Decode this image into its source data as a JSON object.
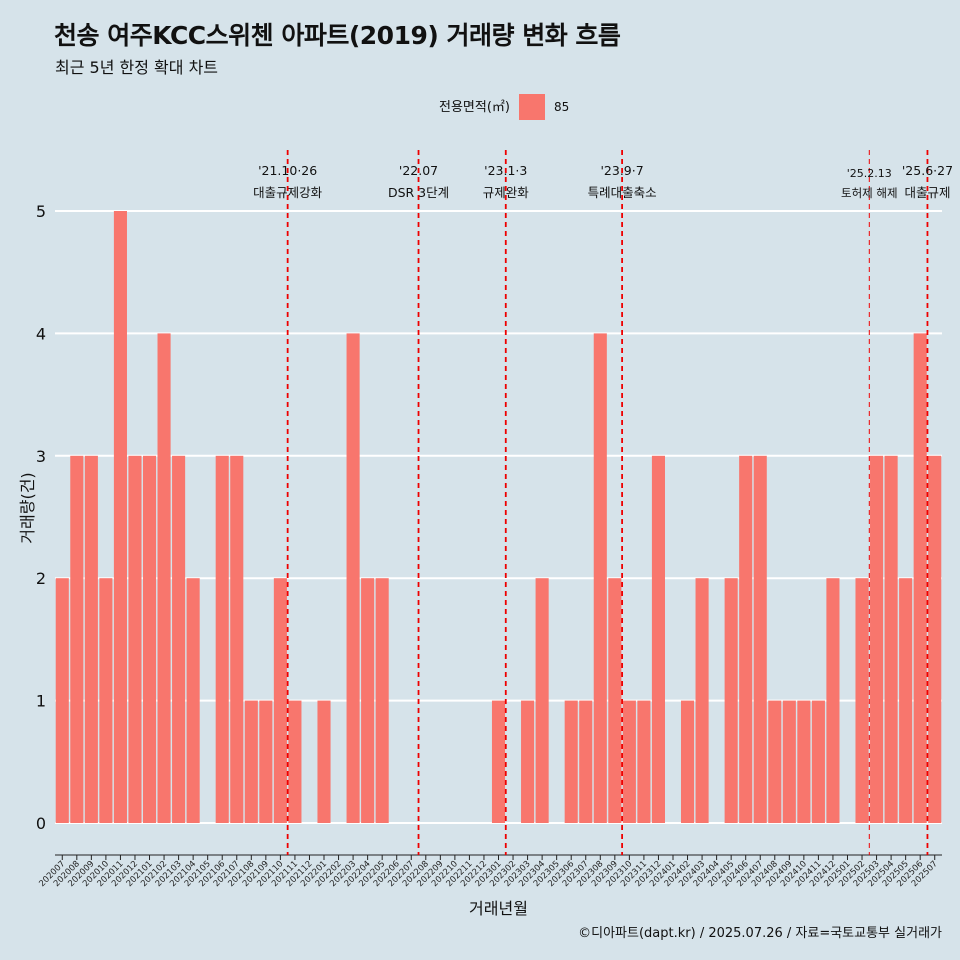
{
  "title": "천송 여주KCC스위첸 아파트(2019) 거래량 변화 흐름",
  "subtitle": "최근 5년 한정 확대 차트",
  "caption": "©디아파트(dapt.kr) / 2025.07.26 / 자료=국토교통부 실거래가",
  "colors": {
    "bar": "#f8766d",
    "event_line": "#ee0000",
    "background": "#d6e3ea",
    "grid": "#ffffff"
  },
  "chart_data": {
    "type": "bar",
    "xlabel": "거래년월",
    "ylabel": "거래량(건)",
    "ylim": [
      0,
      5
    ],
    "yticks": [
      0,
      1,
      2,
      3,
      4,
      5
    ],
    "legend": {
      "title": "전용면적(㎡)",
      "position": "top",
      "entries": [
        "85"
      ]
    },
    "categories": [
      "202007",
      "202008",
      "202009",
      "202010",
      "202011",
      "202012",
      "202101",
      "202102",
      "202103",
      "202104",
      "202105",
      "202106",
      "202107",
      "202108",
      "202109",
      "202110",
      "202111",
      "202112",
      "202201",
      "202202",
      "202203",
      "202204",
      "202205",
      "202206",
      "202207",
      "202208",
      "202209",
      "202210",
      "202211",
      "202212",
      "202301",
      "202302",
      "202303",
      "202304",
      "202305",
      "202306",
      "202307",
      "202308",
      "202309",
      "202310",
      "202311",
      "202312",
      "202401",
      "202402",
      "202403",
      "202404",
      "202405",
      "202406",
      "202407",
      "202408",
      "202409",
      "202410",
      "202411",
      "202412",
      "202501",
      "202502",
      "202503",
      "202504",
      "202505",
      "202506",
      "202507"
    ],
    "series": [
      {
        "name": "85",
        "values": [
          2,
          3,
          3,
          2,
          5,
          3,
          3,
          4,
          3,
          2,
          0,
          3,
          3,
          1,
          1,
          2,
          1,
          0,
          1,
          0,
          4,
          2,
          2,
          0,
          0,
          0,
          0,
          0,
          0,
          0,
          1,
          0,
          1,
          2,
          0,
          1,
          1,
          4,
          2,
          1,
          1,
          3,
          0,
          1,
          2,
          0,
          2,
          3,
          3,
          1,
          1,
          1,
          1,
          2,
          0,
          2,
          3,
          3,
          2,
          4,
          3
        ]
      }
    ],
    "events": [
      {
        "category": "202110",
        "date": "'21.10·26",
        "label": "대출규제강화",
        "style": "bold"
      },
      {
        "category": "202207",
        "date": "'22.07",
        "label": "DSR 3단계",
        "style": "bold"
      },
      {
        "category": "202301",
        "date": "'23.1·3",
        "label": "규제완화",
        "style": "bold"
      },
      {
        "category": "202309",
        "date": "'23.9·7",
        "label": "특례대출축소",
        "style": "bold"
      },
      {
        "category": "202502",
        "date": "'25.2.13",
        "label": "토허제 해제",
        "style": "thin"
      },
      {
        "category": "202506",
        "date": "'25.6·27",
        "label": "대출규제",
        "style": "bold"
      }
    ]
  }
}
